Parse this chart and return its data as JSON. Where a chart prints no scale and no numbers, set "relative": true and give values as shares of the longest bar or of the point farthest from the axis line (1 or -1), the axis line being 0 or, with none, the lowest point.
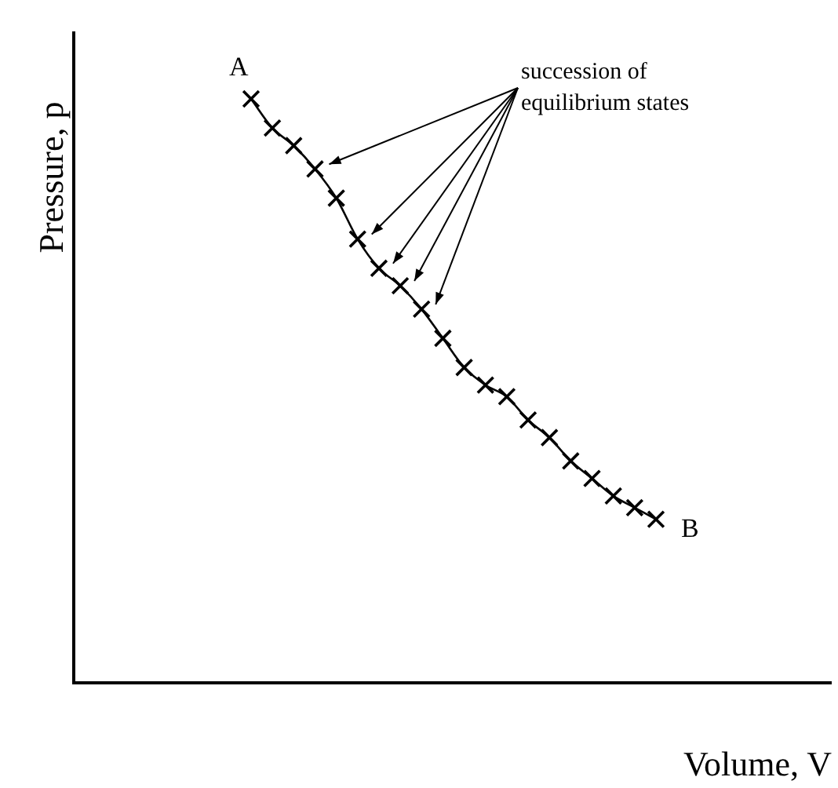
{
  "chart_data": {
    "type": "line",
    "relative": true,
    "xlabel": "Volume, V",
    "ylabel": "Pressure, p",
    "marker": "cross",
    "line_style": "solid",
    "grid": false,
    "legend": false,
    "tick_labels": false,
    "categories": [
      null,
      null,
      null,
      null,
      null,
      null,
      null,
      null,
      null,
      null,
      null,
      null,
      null,
      null,
      null,
      null,
      null,
      null,
      null,
      null
    ],
    "series": [
      {
        "color": "#000000",
        "values": [
          1,
          0.95,
          0.92,
          0.88,
          0.83,
          0.76,
          0.71,
          0.68,
          0.64,
          0.59,
          0.54,
          0.51,
          0.49,
          0.45,
          0.42,
          0.38,
          0.35,
          0.32,
          0.3,
          0.28
        ]
      }
    ],
    "annotations": [
      "A",
      "B",
      "succession of equilibrium states"
    ]
  }
}
